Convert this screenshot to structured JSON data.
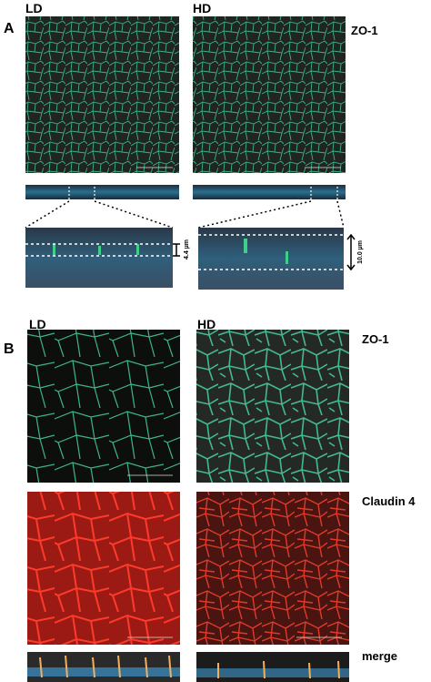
{
  "panel_a": {
    "label": "A",
    "columns": [
      "LD",
      "HD"
    ],
    "stain": "ZO-1",
    "heights": [
      "4.4 µm",
      "10.0 µm"
    ]
  },
  "panel_b": {
    "label": "B",
    "columns": [
      "LD",
      "HD"
    ],
    "rows": [
      "ZO-1",
      "Claudin 4",
      "merge"
    ]
  }
}
